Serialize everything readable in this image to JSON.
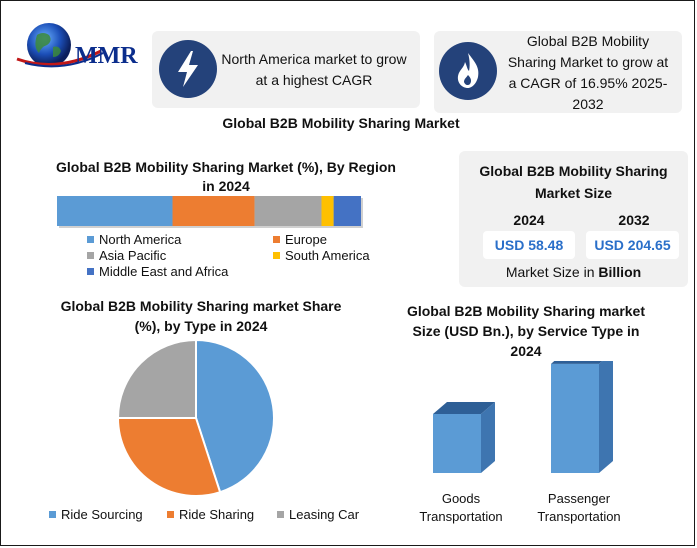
{
  "logo": {
    "text": "MMR"
  },
  "highlights": [
    {
      "icon": "lightning-icon",
      "text_lines": [
        "North America market to grow",
        "at a highest CAGR"
      ]
    },
    {
      "icon": "flame-icon",
      "text_lines": [
        "Global B2B Mobility",
        "Sharing Market to grow at",
        "a CAGR of 16.95% 2025-",
        "2032"
      ]
    }
  ],
  "main_title": "Global B2B Mobility Sharing Market",
  "colors": {
    "blue": "#5b9bd5",
    "orange": "#ed7d31",
    "gray": "#a5a5a5",
    "yellow": "#ffc000",
    "dark_blue": "#4472c4",
    "accent_text": "#2a6fc9"
  },
  "market_size": {
    "title_lines": [
      "Global B2B Mobility Sharing",
      "Market Size"
    ],
    "years": [
      "2024",
      "2032"
    ],
    "values": [
      "USD 58.48",
      "USD 204.65"
    ],
    "footer_prefix": "Market Size in ",
    "footer_bold": "Billion"
  },
  "chart_data": [
    {
      "type": "bar",
      "orientation": "horizontal-stacked",
      "title": "Global B2B Mobility Sharing Market (%), By Region in 2024",
      "title_lines": [
        "Global B2B Mobility Sharing Market (%), By Region",
        "in 2024"
      ],
      "categories": [
        "North America",
        "Europe",
        "Asia Pacific",
        "South America",
        "Middle East and Africa"
      ],
      "values": [
        38,
        27,
        22,
        4,
        9
      ],
      "legend_placement": "bottom"
    },
    {
      "type": "pie",
      "title": "Global B2B Mobility Sharing market Share (%), by Type in 2024",
      "title_lines": [
        "Global B2B Mobility Sharing market Share",
        "(%), by Type in 2024"
      ],
      "categories": [
        "Ride Sourcing",
        "Ride Sharing",
        "Leasing Car"
      ],
      "values": [
        45,
        30,
        25
      ],
      "legend_placement": "bottom"
    },
    {
      "type": "bar",
      "title": "Global B2B Mobility Sharing market Size (USD Bn.), by Service Type in 2024",
      "title_lines": [
        "Global B2B Mobility Sharing market",
        "Size (USD Bn.), by Service Type in",
        "2024"
      ],
      "categories": [
        [
          "Goods",
          "Transportation"
        ],
        [
          "Passenger",
          "Transportation"
        ]
      ],
      "values": [
        20,
        37
      ],
      "ylim": [
        0,
        40
      ],
      "grid": false
    }
  ]
}
